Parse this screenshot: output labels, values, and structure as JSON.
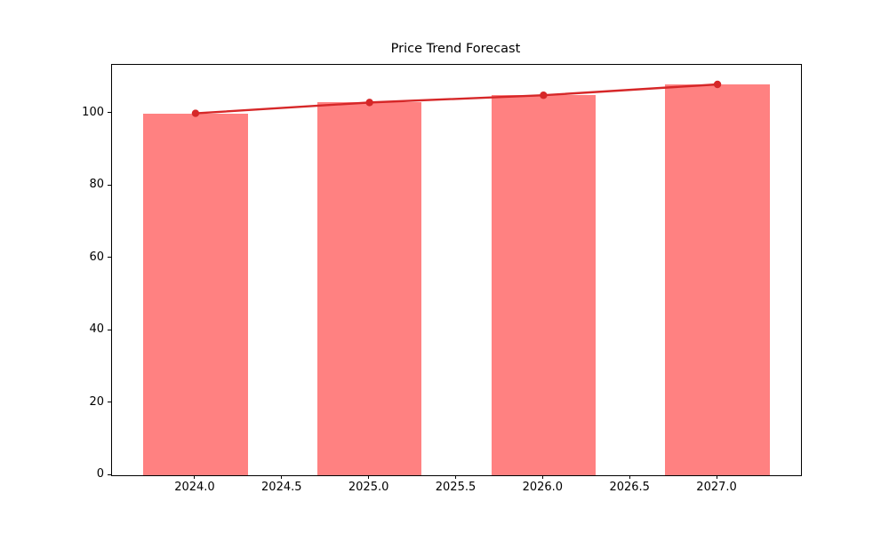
{
  "chart_data": {
    "type": "bar",
    "title": "Price Trend Forecast",
    "categories": [
      2024,
      2025,
      2026,
      2027
    ],
    "series": [
      {
        "name": "price-bars",
        "type": "bar",
        "values": [
          100,
          103,
          105,
          108
        ],
        "color": "#ff8181",
        "bar_width_years": 0.6
      },
      {
        "name": "trend-line",
        "type": "line",
        "values": [
          100,
          103,
          105,
          108
        ],
        "color": "#d62728",
        "marker": "circle"
      }
    ],
    "xlabel": "",
    "ylabel": "",
    "x_tick_labels": [
      "2024.0",
      "2024.5",
      "2025.0",
      "2025.5",
      "2026.0",
      "2026.5",
      "2027.0"
    ],
    "x_tick_values": [
      2024,
      2024.5,
      2025,
      2025.5,
      2026,
      2026.5,
      2027
    ],
    "y_tick_labels": [
      "0",
      "20",
      "40",
      "60",
      "80",
      "100"
    ],
    "y_tick_values": [
      0,
      20,
      40,
      60,
      80,
      100
    ],
    "xlim": [
      2023.52,
      2027.48
    ],
    "ylim": [
      0,
      113.4
    ],
    "grid": false,
    "legend": null,
    "frame_color": "#000000",
    "background": "#ffffff"
  }
}
